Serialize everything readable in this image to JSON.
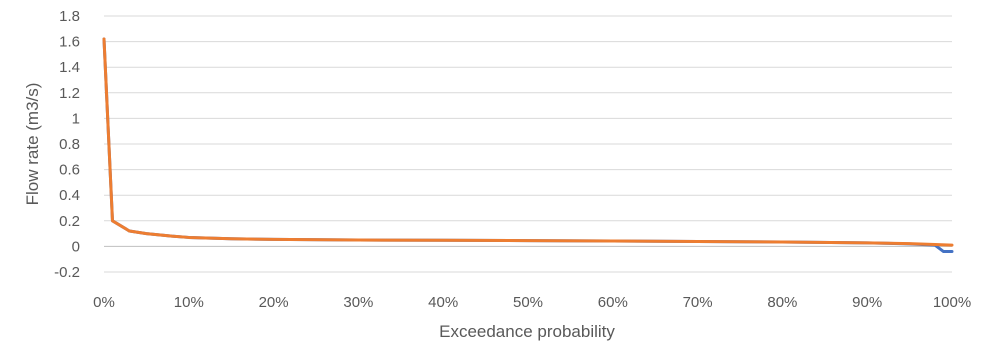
{
  "chart_data": {
    "type": "line",
    "title": "",
    "xlabel": "Exceedance probability",
    "ylabel": "Flow rate (m3/s)",
    "xlim": [
      0,
      100
    ],
    "ylim": [
      -0.2,
      1.8
    ],
    "x_unit": "%",
    "x_ticks": [
      0,
      10,
      20,
      30,
      40,
      50,
      60,
      70,
      80,
      90,
      100
    ],
    "x_tick_labels": [
      "0%",
      "10%",
      "20%",
      "30%",
      "40%",
      "50%",
      "60%",
      "70%",
      "80%",
      "90%",
      "100%"
    ],
    "y_ticks": [
      -0.2,
      0,
      0.2,
      0.4,
      0.6,
      0.8,
      1,
      1.2,
      1.4,
      1.6,
      1.8
    ],
    "y_tick_labels": [
      "-0.2",
      "0",
      "0.2",
      "0.4",
      "0.6",
      "0.8",
      "1",
      "1.2",
      "1.4",
      "1.6",
      "1.8"
    ],
    "grid": "horizontal",
    "legend": "none",
    "series": [
      {
        "color": "#4472C4",
        "x": [
          0,
          1,
          3,
          5,
          8,
          10,
          15,
          20,
          30,
          40,
          50,
          60,
          70,
          80,
          90,
          95,
          98,
          99,
          100
        ],
        "values": [
          1.62,
          0.2,
          0.12,
          0.1,
          0.08,
          0.07,
          0.06,
          0.055,
          0.05,
          0.048,
          0.045,
          0.042,
          0.038,
          0.034,
          0.028,
          0.02,
          0.01,
          -0.04,
          -0.04
        ]
      },
      {
        "color": "#ED7D31",
        "x": [
          0,
          1,
          3,
          5,
          8,
          10,
          15,
          20,
          30,
          40,
          50,
          60,
          70,
          80,
          90,
          95,
          98,
          100
        ],
        "values": [
          1.62,
          0.2,
          0.12,
          0.1,
          0.08,
          0.07,
          0.06,
          0.055,
          0.05,
          0.048,
          0.045,
          0.042,
          0.038,
          0.034,
          0.028,
          0.022,
          0.015,
          0.01
        ]
      }
    ]
  }
}
